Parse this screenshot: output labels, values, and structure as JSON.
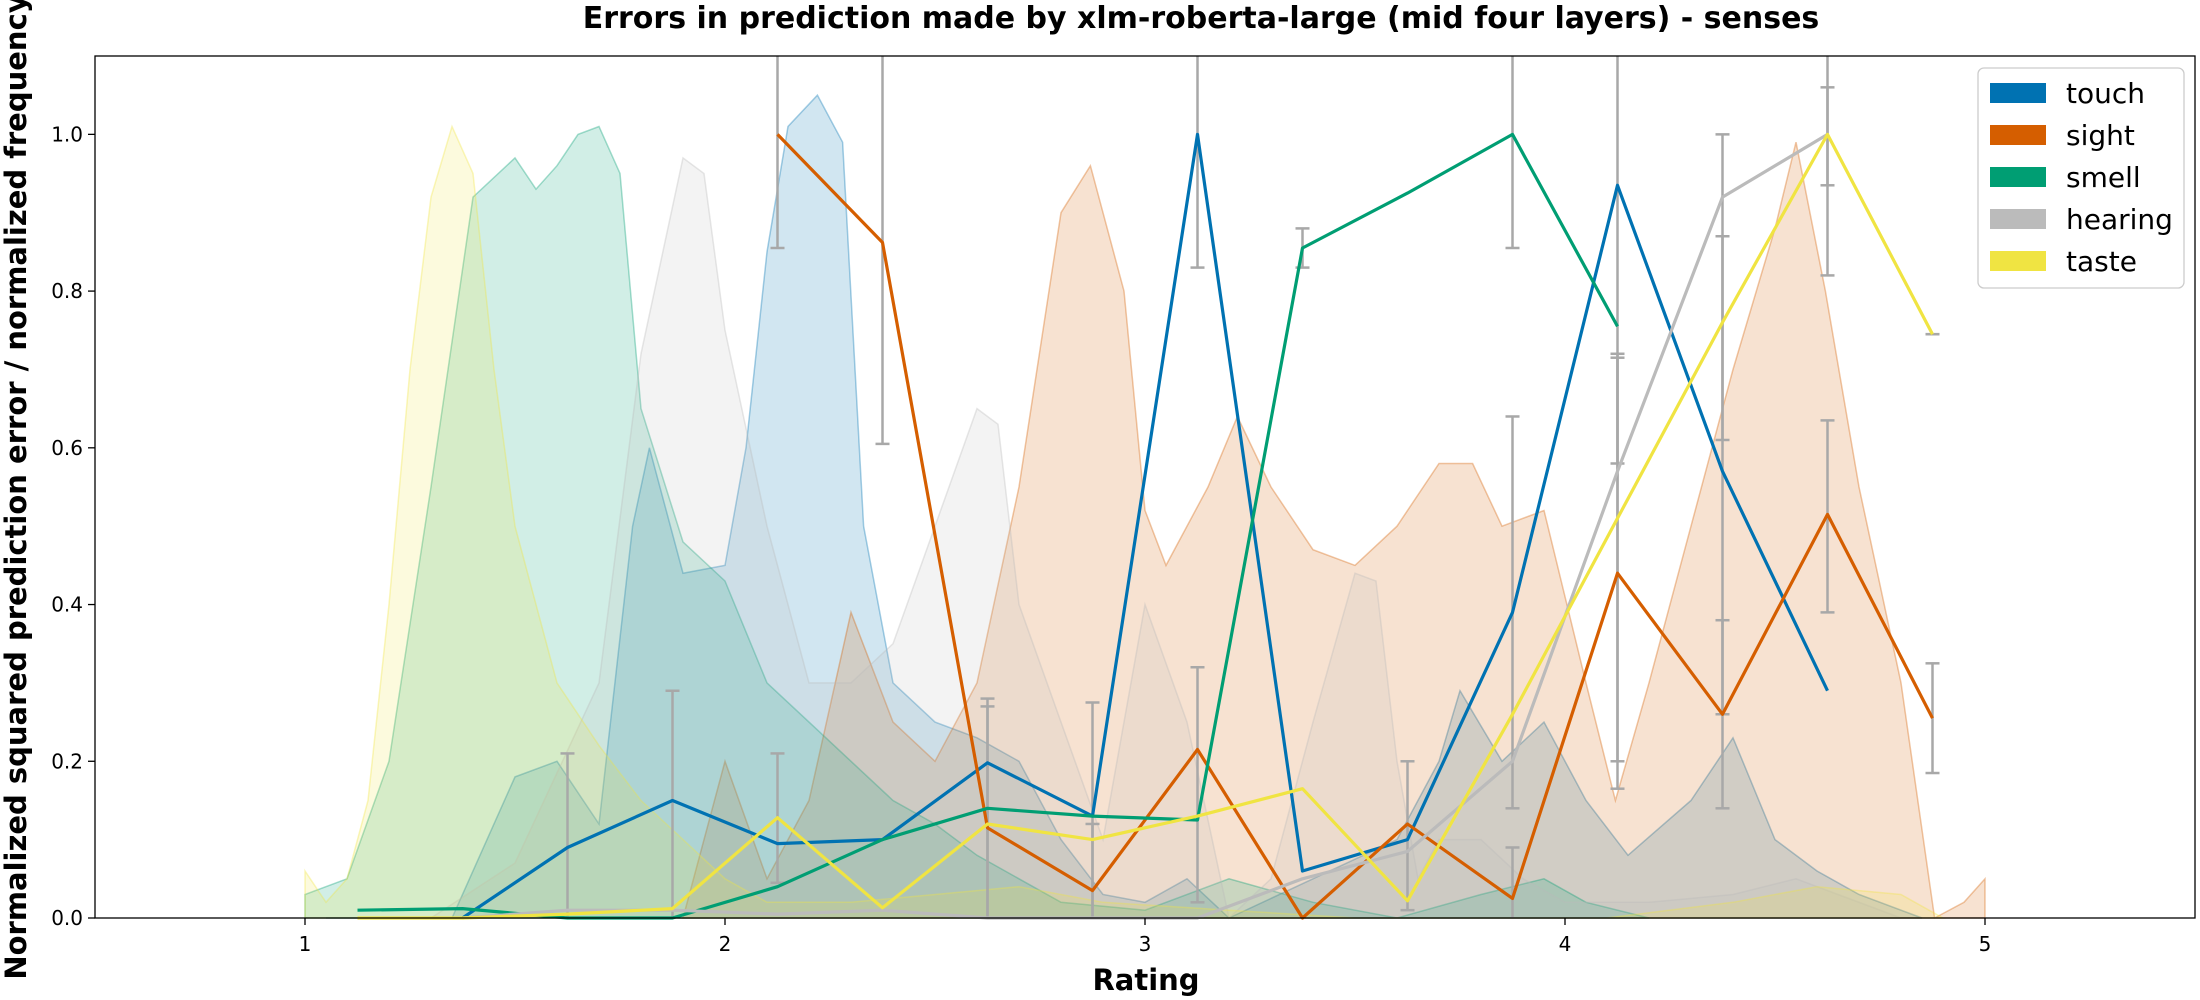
{
  "chart_data": {
    "type": "line",
    "title": "Errors in prediction made by xlm-roberta-large (mid four layers) - senses",
    "xlabel": "Rating",
    "ylabel": "Normalized squared prediction error / normalized frequency",
    "xlim": [
      0.5,
      5.5
    ],
    "ylim": [
      0.0,
      1.1
    ],
    "x_ticks": [
      "1",
      "2",
      "3",
      "4",
      "5"
    ],
    "y_ticks": [
      "0.0",
      "0.2",
      "0.4",
      "0.6",
      "0.8",
      "1.0"
    ],
    "grid": false,
    "legend_placement": "top-right",
    "series": [
      {
        "name": "touch",
        "color": "#0072b2",
        "x": [
          1.375,
          1.625,
          1.875,
          2.125,
          2.375,
          2.625,
          2.875,
          3.125,
          3.375,
          3.625,
          3.875,
          4.125,
          4.375,
          4.625
        ],
        "y": [
          0.0,
          0.09,
          0.15,
          0.095,
          0.1,
          0.198,
          0.13,
          1.0,
          0.06,
          0.1,
          0.39,
          0.935,
          0.57,
          0.29
        ],
        "err_lo": [
          null,
          0.0,
          0.0,
          null,
          null,
          0.0,
          0.0,
          0.83,
          null,
          null,
          0.14,
          0.58,
          0.26,
          null
        ],
        "err_hi": [
          null,
          0.21,
          0.29,
          null,
          null,
          0.28,
          0.275,
          1.1,
          null,
          null,
          0.64,
          1.1,
          0.87,
          null
        ],
        "density": [
          [
            1.05,
            0
          ],
          [
            1.2,
            0
          ],
          [
            1.35,
            0
          ],
          [
            1.5,
            0.18
          ],
          [
            1.6,
            0.2
          ],
          [
            1.7,
            0.12
          ],
          [
            1.78,
            0.5
          ],
          [
            1.82,
            0.6
          ],
          [
            1.9,
            0.44
          ],
          [
            2.0,
            0.45
          ],
          [
            2.05,
            0.6
          ],
          [
            2.1,
            0.85
          ],
          [
            2.15,
            1.01
          ],
          [
            2.22,
            1.05
          ],
          [
            2.28,
            0.99
          ],
          [
            2.33,
            0.5
          ],
          [
            2.4,
            0.3
          ],
          [
            2.5,
            0.25
          ],
          [
            2.6,
            0.23
          ],
          [
            2.7,
            0.2
          ],
          [
            2.8,
            0.1
          ],
          [
            2.9,
            0.03
          ],
          [
            3.0,
            0.02
          ],
          [
            3.1,
            0.05
          ],
          [
            3.2,
            0.0
          ],
          [
            3.4,
            0.05
          ],
          [
            3.6,
            0.1
          ],
          [
            3.7,
            0.2
          ],
          [
            3.75,
            0.29
          ],
          [
            3.85,
            0.2
          ],
          [
            3.95,
            0.25
          ],
          [
            4.05,
            0.15
          ],
          [
            4.15,
            0.08
          ],
          [
            4.3,
            0.15
          ],
          [
            4.4,
            0.23
          ],
          [
            4.5,
            0.1
          ],
          [
            4.6,
            0.06
          ],
          [
            4.7,
            0.03
          ],
          [
            4.85,
            0.0
          ]
        ]
      },
      {
        "name": "sight",
        "color": "#d55e00",
        "x": [
          2.125,
          2.375,
          2.625,
          2.875,
          3.125,
          3.375,
          3.625,
          3.875,
          4.125,
          4.375,
          4.625,
          4.875
        ],
        "y": [
          1.0,
          0.862,
          0.115,
          0.035,
          0.215,
          0.0,
          0.12,
          0.025,
          0.44,
          0.26,
          0.515,
          0.255
        ],
        "err_lo": [
          0.855,
          0.605,
          0.0,
          0.0,
          0.02,
          null,
          0.01,
          0.0,
          0.165,
          0.14,
          0.39,
          0.185
        ],
        "err_hi": [
          1.1,
          1.1,
          0.27,
          0.12,
          0.32,
          null,
          0.2,
          0.09,
          0.715,
          0.38,
          0.635,
          0.325
        ],
        "density": [
          [
            1.9,
            0
          ],
          [
            2.0,
            0.2
          ],
          [
            2.1,
            0.05
          ],
          [
            2.2,
            0.15
          ],
          [
            2.3,
            0.39
          ],
          [
            2.4,
            0.25
          ],
          [
            2.5,
            0.2
          ],
          [
            2.6,
            0.3
          ],
          [
            2.7,
            0.55
          ],
          [
            2.8,
            0.9
          ],
          [
            2.87,
            0.96
          ],
          [
            2.95,
            0.8
          ],
          [
            3.0,
            0.52
          ],
          [
            3.05,
            0.45
          ],
          [
            3.15,
            0.55
          ],
          [
            3.22,
            0.64
          ],
          [
            3.3,
            0.55
          ],
          [
            3.4,
            0.47
          ],
          [
            3.5,
            0.45
          ],
          [
            3.6,
            0.5
          ],
          [
            3.7,
            0.58
          ],
          [
            3.78,
            0.58
          ],
          [
            3.85,
            0.5
          ],
          [
            3.95,
            0.52
          ],
          [
            4.05,
            0.3
          ],
          [
            4.12,
            0.15
          ],
          [
            4.2,
            0.3
          ],
          [
            4.3,
            0.5
          ],
          [
            4.4,
            0.7
          ],
          [
            4.5,
            0.88
          ],
          [
            4.55,
            0.99
          ],
          [
            4.62,
            0.8
          ],
          [
            4.7,
            0.55
          ],
          [
            4.8,
            0.3
          ],
          [
            4.88,
            0.0
          ],
          [
            4.95,
            0.02
          ],
          [
            5.0,
            0.05
          ]
        ]
      },
      {
        "name": "smell",
        "color": "#009e73",
        "x": [
          1.125,
          1.375,
          1.625,
          1.875,
          2.125,
          2.375,
          2.625,
          2.875,
          3.125,
          3.375,
          3.625,
          3.875,
          4.125
        ],
        "y": [
          0.01,
          0.012,
          0.0,
          0.0,
          0.04,
          0.1,
          0.14,
          0.13,
          0.125,
          0.855,
          0.925,
          1.0,
          0.755
        ],
        "err_lo": [
          null,
          null,
          null,
          null,
          null,
          null,
          null,
          null,
          null,
          0.83,
          null,
          0.855,
          null
        ],
        "err_hi": [
          null,
          null,
          null,
          null,
          null,
          null,
          null,
          null,
          null,
          0.88,
          null,
          1.1,
          null
        ],
        "density": [
          [
            1.0,
            0.03
          ],
          [
            1.1,
            0.05
          ],
          [
            1.2,
            0.2
          ],
          [
            1.3,
            0.55
          ],
          [
            1.4,
            0.92
          ],
          [
            1.5,
            0.97
          ],
          [
            1.55,
            0.93
          ],
          [
            1.6,
            0.96
          ],
          [
            1.65,
            1.0
          ],
          [
            1.7,
            1.01
          ],
          [
            1.75,
            0.95
          ],
          [
            1.8,
            0.65
          ],
          [
            1.9,
            0.48
          ],
          [
            2.0,
            0.43
          ],
          [
            2.1,
            0.3
          ],
          [
            2.2,
            0.25
          ],
          [
            2.3,
            0.2
          ],
          [
            2.4,
            0.15
          ],
          [
            2.5,
            0.12
          ],
          [
            2.6,
            0.08
          ],
          [
            2.7,
            0.05
          ],
          [
            2.8,
            0.02
          ],
          [
            3.0,
            0.01
          ],
          [
            3.2,
            0.05
          ],
          [
            3.4,
            0.02
          ],
          [
            3.6,
            0.0
          ],
          [
            3.8,
            0.03
          ],
          [
            3.95,
            0.05
          ],
          [
            4.05,
            0.02
          ],
          [
            4.2,
            0.0
          ]
        ]
      },
      {
        "name": "hearing",
        "color": "#bbbbbb",
        "x": [
          1.375,
          1.625,
          1.875,
          2.125,
          2.375,
          2.625,
          2.875,
          3.125,
          3.375,
          3.625,
          3.875,
          4.125,
          4.375,
          4.625
        ],
        "y": [
          0.0,
          0.01,
          0.01,
          0.005,
          0.01,
          0.0,
          0.0,
          0.0,
          0.05,
          0.085,
          0.2,
          0.57,
          0.92,
          1.0
        ],
        "err_lo": [
          null,
          null,
          null,
          null,
          null,
          null,
          null,
          null,
          null,
          null,
          null,
          0.2,
          0.61,
          0.82
        ],
        "err_hi": [
          null,
          null,
          null,
          null,
          null,
          null,
          null,
          null,
          null,
          null,
          null,
          0.72,
          1.0,
          1.06
        ],
        "density": [
          [
            1.3,
            0
          ],
          [
            1.5,
            0.07
          ],
          [
            1.7,
            0.3
          ],
          [
            1.8,
            0.72
          ],
          [
            1.9,
            0.97
          ],
          [
            1.95,
            0.95
          ],
          [
            2.0,
            0.75
          ],
          [
            2.1,
            0.5
          ],
          [
            2.2,
            0.3
          ],
          [
            2.3,
            0.3
          ],
          [
            2.4,
            0.35
          ],
          [
            2.5,
            0.5
          ],
          [
            2.6,
            0.65
          ],
          [
            2.65,
            0.63
          ],
          [
            2.7,
            0.4
          ],
          [
            2.8,
            0.25
          ],
          [
            2.9,
            0.1
          ],
          [
            3.0,
            0.4
          ],
          [
            3.1,
            0.25
          ],
          [
            3.2,
            0.0
          ],
          [
            3.3,
            0.05
          ],
          [
            3.4,
            0.25
          ],
          [
            3.5,
            0.44
          ],
          [
            3.55,
            0.43
          ],
          [
            3.6,
            0.2
          ],
          [
            3.65,
            0.05
          ],
          [
            3.7,
            0.1
          ],
          [
            3.8,
            0.1
          ],
          [
            3.9,
            0.05
          ],
          [
            4.0,
            0.02
          ],
          [
            4.2,
            0.02
          ],
          [
            4.4,
            0.03
          ],
          [
            4.55,
            0.05
          ],
          [
            4.65,
            0.03
          ],
          [
            4.8,
            0.0
          ]
        ]
      },
      {
        "name": "taste",
        "color": "#f0e442",
        "x": [
          1.125,
          1.375,
          1.625,
          1.875,
          2.125,
          2.375,
          2.625,
          2.875,
          3.125,
          3.375,
          3.625,
          3.875,
          4.125,
          4.375,
          4.625,
          4.875
        ],
        "y": [
          0.0,
          0.0,
          0.005,
          0.012,
          0.128,
          0.013,
          0.12,
          0.1,
          0.13,
          0.165,
          0.022,
          0.26,
          0.51,
          0.76,
          1.0,
          0.745
        ],
        "err_lo": [
          null,
          null,
          null,
          null,
          0.045,
          null,
          null,
          null,
          null,
          null,
          null,
          null,
          null,
          null,
          0.935,
          0.745
        ],
        "err_hi": [
          null,
          null,
          null,
          null,
          0.21,
          null,
          null,
          null,
          null,
          null,
          null,
          null,
          null,
          null,
          1.1,
          0.745
        ],
        "density": [
          [
            1.0,
            0.06
          ],
          [
            1.05,
            0.02
          ],
          [
            1.1,
            0.05
          ],
          [
            1.15,
            0.15
          ],
          [
            1.2,
            0.4
          ],
          [
            1.25,
            0.7
          ],
          [
            1.3,
            0.92
          ],
          [
            1.35,
            1.01
          ],
          [
            1.4,
            0.95
          ],
          [
            1.45,
            0.7
          ],
          [
            1.5,
            0.5
          ],
          [
            1.6,
            0.3
          ],
          [
            1.7,
            0.22
          ],
          [
            1.8,
            0.15
          ],
          [
            1.9,
            0.1
          ],
          [
            2.0,
            0.05
          ],
          [
            2.1,
            0.02
          ],
          [
            2.3,
            0.02
          ],
          [
            2.5,
            0.03
          ],
          [
            2.7,
            0.04
          ],
          [
            2.9,
            0.02
          ],
          [
            3.2,
            0.01
          ],
          [
            3.5,
            0.0
          ],
          [
            3.8,
            0.0
          ],
          [
            4.1,
            0.0
          ],
          [
            4.4,
            0.02
          ],
          [
            4.6,
            0.04
          ],
          [
            4.8,
            0.03
          ],
          [
            4.9,
            0.0
          ]
        ]
      }
    ]
  }
}
